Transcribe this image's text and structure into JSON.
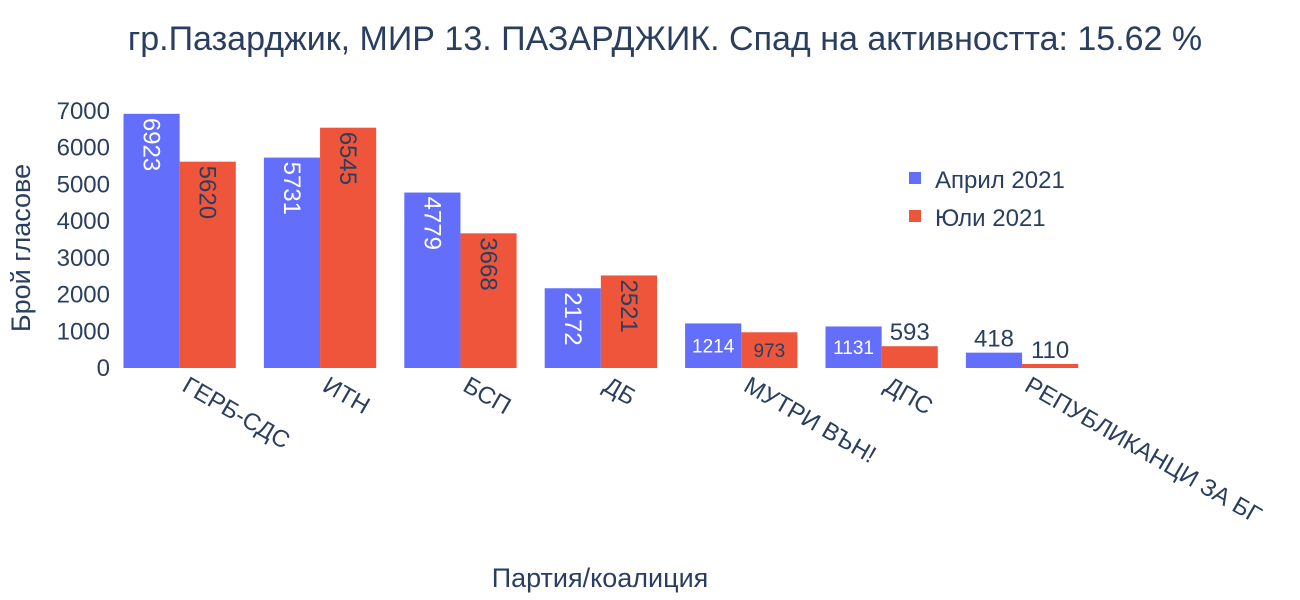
{
  "chart_data": {
    "type": "bar",
    "title": "гр.Пазарджик, МИР 13. ПАЗАРДЖИК. Спад на активността: 15.62 %",
    "xlabel": "Партия/коалиция",
    "ylabel": "Брой гласове",
    "ylim": [
      0,
      7000
    ],
    "yticks": [
      0,
      1000,
      2000,
      3000,
      4000,
      5000,
      6000,
      7000
    ],
    "categories": [
      "ГЕРБ-СДС",
      "ИТН",
      "БСП",
      "ДБ",
      "МУТРИ ВЪН!",
      "ДПС",
      "РЕПУБЛИКАНЦИ ЗА БГ"
    ],
    "series": [
      {
        "name": "Април 2021",
        "values": [
          6923,
          5731,
          4779,
          2172,
          1214,
          1131,
          418
        ]
      },
      {
        "name": "Юли 2021",
        "values": [
          5620,
          6545,
          3668,
          2521,
          973,
          593,
          110
        ]
      }
    ],
    "grid": false,
    "legend_position": "right",
    "colors": {
      "april": "#636efa",
      "july": "#ef553b",
      "text": "#2a3f5f"
    }
  }
}
